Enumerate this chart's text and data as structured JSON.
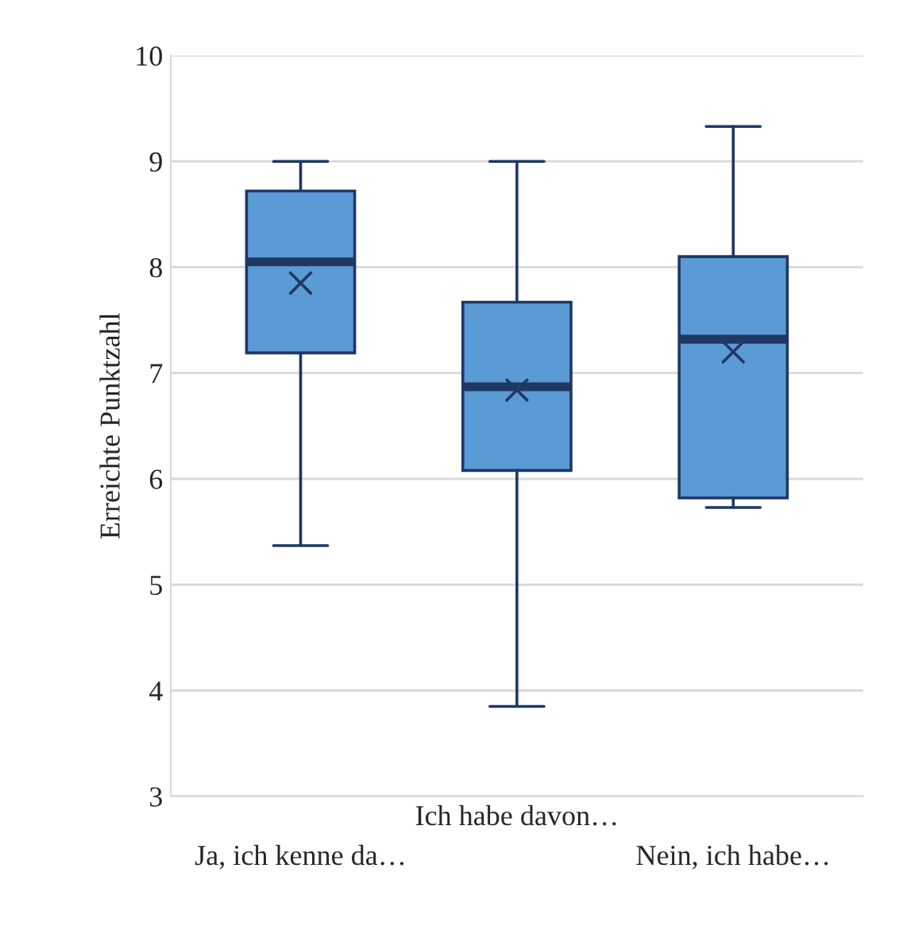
{
  "chart_data": {
    "type": "box",
    "ylabel": "Erreichte Punktzahl",
    "categories": [
      "Ja, ich kenne da…",
      "Ich habe davon…",
      "Nein, ich habe…"
    ],
    "boxes": [
      {
        "low": 5.37,
        "q1": 7.19,
        "median": 8.05,
        "q3": 8.72,
        "high": 9.0,
        "mean": 7.85
      },
      {
        "low": 3.85,
        "q1": 6.08,
        "median": 6.87,
        "q3": 7.67,
        "high": 9.0,
        "mean": 6.84
      },
      {
        "low": 5.73,
        "q1": 5.82,
        "median": 7.32,
        "q3": 8.1,
        "high": 9.33,
        "mean": 7.2
      }
    ],
    "color": "#5b9bd5",
    "ylim": [
      3,
      10
    ],
    "yticks": [
      3,
      4,
      5,
      6,
      7,
      8,
      9,
      10
    ],
    "grid": "y",
    "marker": "cross"
  }
}
